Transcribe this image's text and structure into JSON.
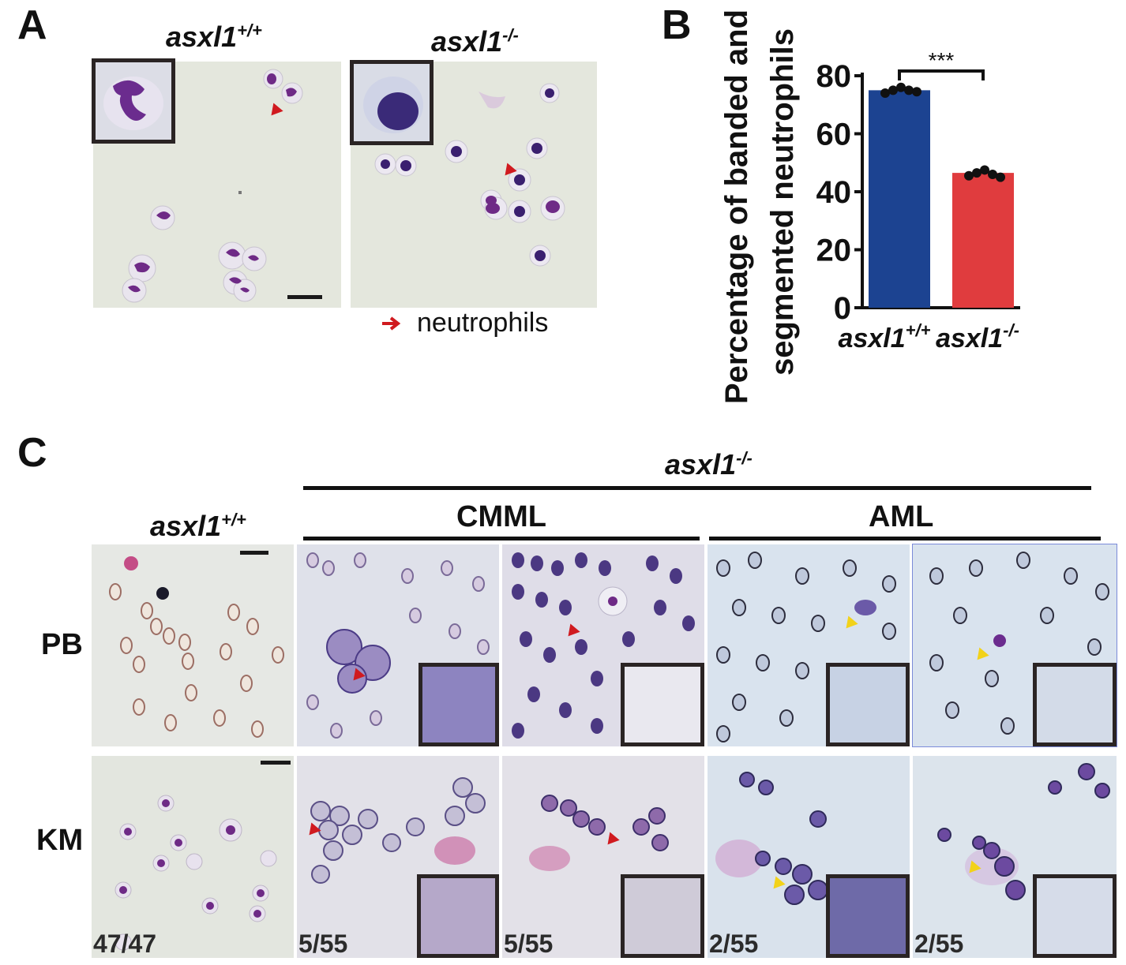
{
  "figure": {
    "panel_a": {
      "letter": "A",
      "left_label": {
        "gene": "asxl1",
        "sup": "+/+"
      },
      "right_label": {
        "gene": "asxl1",
        "sup": "-/-"
      },
      "legend_text": "neutrophils",
      "arrow_color": "#d01a1f"
    },
    "panel_b": {
      "letter": "B"
    },
    "panel_c": {
      "letter": "C",
      "mutant_label": {
        "gene": "asxl1",
        "sup": "-/-"
      },
      "wt_label": {
        "gene": "asxl1",
        "sup": "+/+"
      },
      "group_cmml": "CMML",
      "group_aml": "AML",
      "row_pb": "PB",
      "row_km": "KM",
      "fractions": [
        "47/47",
        "5/55",
        "5/55",
        "2/55",
        "2/55"
      ],
      "arrow_red": "#d01a1f",
      "arrow_yellow": "#f2d21a"
    }
  },
  "chart_data": {
    "type": "bar",
    "categories": [
      "asxl1+/+",
      "asxl1-/-"
    ],
    "category_labels": [
      {
        "gene": "asxl1",
        "sup": "+/+"
      },
      {
        "gene": "asxl1",
        "sup": "-/-"
      }
    ],
    "values": [
      75,
      46.5
    ],
    "points": [
      [
        74,
        75,
        76,
        75,
        74.5
      ],
      [
        45.5,
        46.5,
        47.5,
        46,
        45
      ]
    ],
    "colors": [
      "#1c4391",
      "#e03c3e"
    ],
    "ylabel_line1": "Percentage of banded and",
    "ylabel_line2": "segmented neutrophils",
    "ylim": [
      0,
      80
    ],
    "yticks": [
      0,
      20,
      40,
      60,
      80
    ],
    "significance": "***"
  }
}
